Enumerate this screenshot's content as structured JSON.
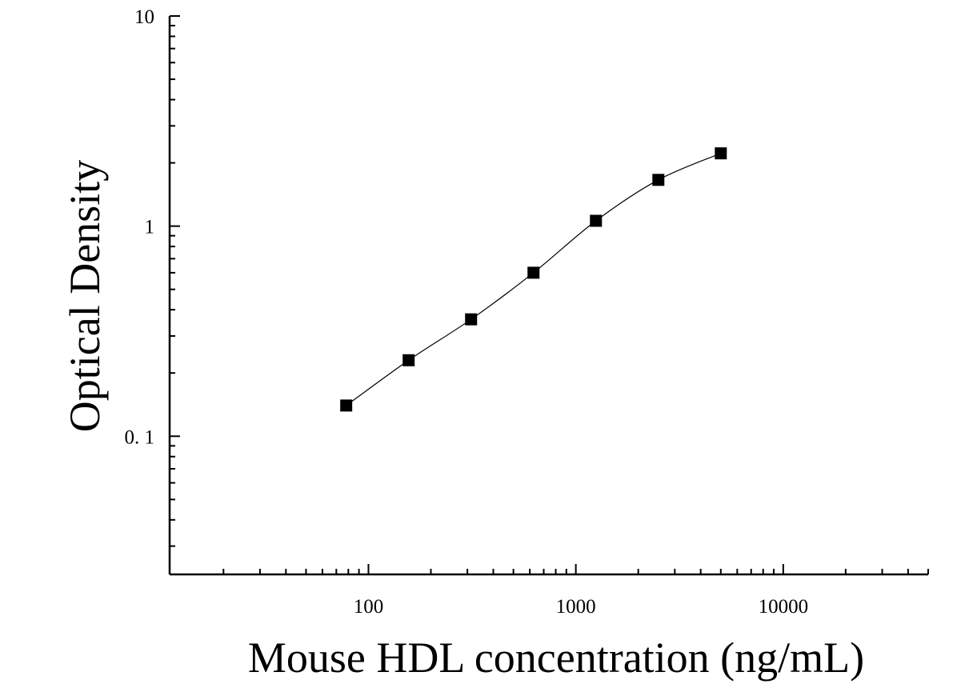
{
  "chart_data": {
    "type": "scatter",
    "xlabel": "Mouse HDL concentration (ng/mL)",
    "ylabel": "Optical Density",
    "x_scale": "log",
    "y_scale": "log",
    "xlim": [
      11,
      50000
    ],
    "ylim": [
      0.022,
      10
    ],
    "x_ticks": [
      {
        "value": 100,
        "label": "100"
      },
      {
        "value": 1000,
        "label": "1000"
      },
      {
        "value": 10000,
        "label": "10000"
      }
    ],
    "y_ticks": [
      {
        "value": 0.1,
        "label": "0. 1"
      },
      {
        "value": 1,
        "label": "1"
      },
      {
        "value": 10,
        "label": "10"
      }
    ],
    "grid": false,
    "series": [
      {
        "marker": "square",
        "color": "#000000",
        "x": [
          78.125,
          156.25,
          312.5,
          625,
          1250,
          2500,
          5000
        ],
        "y": [
          0.14,
          0.23,
          0.36,
          0.6,
          1.06,
          1.66,
          2.22
        ]
      }
    ],
    "fit_curve": {
      "color": "#000000",
      "x_range": [
        78.125,
        5000
      ]
    }
  }
}
